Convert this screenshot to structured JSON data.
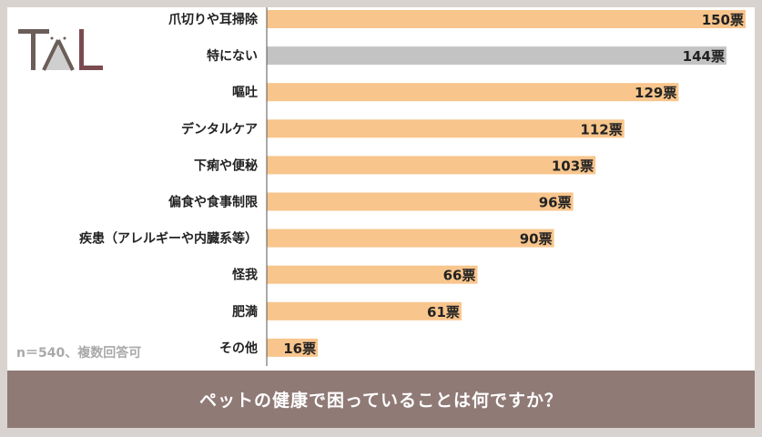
{
  "logo": "TAL",
  "note": "n＝540、複数回答可",
  "footer_title": "ペットの健康で困っていることは何ですか？",
  "chart_data": {
    "type": "bar",
    "orientation": "horizontal",
    "categories": [
      "爪切りや耳掃除",
      "特にない",
      "嘔吐",
      "デンタルケア",
      "下痢や便秘",
      "偏食や食事制限",
      "疾患（アレルギーや内臓系等）",
      "怪我",
      "肥満",
      "その他"
    ],
    "values": [
      150,
      144,
      129,
      112,
      103,
      96,
      90,
      66,
      61,
      16
    ],
    "unit": "票",
    "value_labels": [
      "150票",
      "144票",
      "129票",
      "112票",
      "103票",
      "96票",
      "90票",
      "66票",
      "61票",
      "16票"
    ],
    "xlim": [
      0,
      150
    ],
    "grid": false,
    "colors": {
      "bar": "#f8c58c",
      "highlight": "#c3c3c3",
      "axis": "#555555"
    }
  }
}
